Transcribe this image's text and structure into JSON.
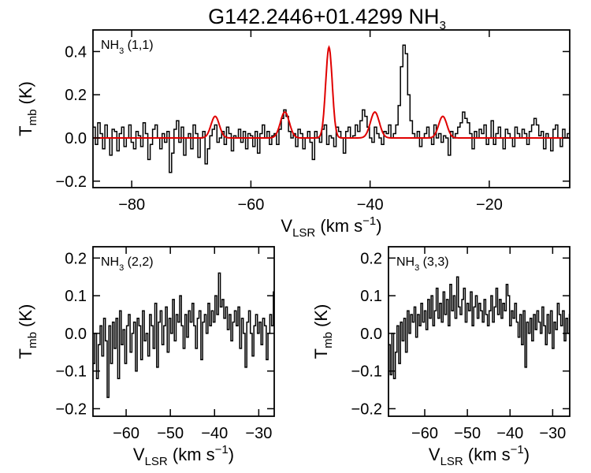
{
  "figure": {
    "title_main": "G142.2446+01.4299 NH",
    "title_sub": "3"
  },
  "chart_data": [
    {
      "type": "line",
      "panel_label": {
        "main": "NH",
        "sub": "3",
        "tail": " (1,1)"
      },
      "xlabel": {
        "main": "V",
        "sub": "LSR",
        "tail": " (km s",
        "sup": "−1",
        "end": ")"
      },
      "ylabel": {
        "main": "T",
        "sub": "mb",
        "tail": " (K)"
      },
      "xlim": [
        -86.5,
        -6.5
      ],
      "ylim": [
        -0.23,
        0.5
      ],
      "xticks": [
        -80,
        -60,
        -40,
        -20
      ],
      "xtick_labels": [
        "−80",
        "−60",
        "−40",
        "−20"
      ],
      "yticks": [
        -0.2,
        0.0,
        0.2,
        0.4
      ],
      "ytick_labels": [
        "−0.2",
        "0.0",
        "0.2",
        "0.4"
      ],
      "series": [
        {
          "name": "",
          "style": "step",
          "color": "#000000",
          "x_start": -86.5,
          "x_step": 0.4,
          "values": [
            0.05,
            -0.03,
            0.07,
            0.02,
            -0.05,
            0.06,
            0.0,
            -0.08,
            0.04,
            0.03,
            -0.06,
            0.02,
            0.05,
            -0.04,
            0.0,
            0.06,
            -0.02,
            -0.05,
            0.03,
            0.01,
            -0.04,
            0.07,
            0.02,
            -0.1,
            -0.03,
            0.04,
            0.06,
            0.0,
            -0.05,
            0.02,
            -0.02,
            0.03,
            -0.16,
            -0.07,
            0.04,
            0.08,
            -0.02,
            0.05,
            -0.08,
            0.0,
            0.02,
            -0.05,
            0.06,
            0.02,
            -0.09,
            0.0,
            0.03,
            -0.12,
            -0.05,
            0.01,
            0.04,
            0.06,
            -0.02,
            0.0,
            0.03,
            -0.03,
            0.05,
            0.02,
            -0.06,
            0.01,
            0.0,
            0.04,
            -0.02,
            0.03,
            -0.05,
            0.02,
            0.01,
            -0.04,
            0.03,
            -0.07,
            0.02,
            0.06,
            0.0,
            0.03,
            -0.03,
            0.01,
            0.02,
            -0.03,
            0.04,
            0.09,
            0.13,
            0.1,
            0.03,
            0.0,
            0.02,
            -0.04,
            0.04,
            0.02,
            -0.05,
            0.0,
            0.03,
            -0.02,
            -0.1,
            0.03,
            0.0,
            -0.02,
            0.04,
            0.06,
            -0.03,
            0.01,
            0.0,
            -0.04,
            0.05,
            0.03,
            0.0,
            -0.07,
            0.03,
            0.05,
            0.0,
            0.01,
            0.06,
            0.03,
            0.08,
            0.13,
            0.1,
            0.05,
            0.0,
            -0.02,
            0.05,
            0.02,
            0.0,
            -0.03,
            0.03,
            0.02,
            0.06,
            0.0,
            0.02,
            0.06,
            0.15,
            0.33,
            0.43,
            0.39,
            0.2,
            0.08,
            0.02,
            0.0,
            0.03,
            -0.04,
            0.0,
            0.02,
            0.05,
            0.0,
            -0.03,
            0.06,
            0.0,
            0.02,
            -0.02,
            0.01,
            0.0,
            -0.08,
            0.03,
            0.0,
            0.02,
            0.05,
            0.07,
            0.12,
            0.09,
            0.07,
            0.02,
            -0.05,
            0.03,
            0.0,
            0.04,
            0.02,
            0.06,
            -0.03,
            0.0,
            0.08,
            -0.03,
            0.02,
            0.05,
            0.0,
            -0.05,
            0.04,
            0.02,
            0.0,
            -0.04,
            0.05,
            0.02,
            0.0,
            0.04,
            0.02,
            -0.03,
            0.03,
            0.06,
            0.09,
            0.06,
            0.01,
            0.03,
            -0.05,
            0.02,
            0.0,
            -0.06,
            0.04,
            0.06,
            0.0,
            -0.04,
            0.04,
            0.0,
            0.02,
            0.05,
            0.0,
            0.03,
            -0.03,
            0.06,
            0.0,
            -0.02,
            0.03,
            0.0,
            0.06,
            -0.04,
            0.02,
            -0.08,
            0.04,
            0.1,
            0.05,
            0.02,
            -0.03,
            -0.05,
            0.04,
            0.06,
            0.01,
            -0.03,
            0.04,
            0.05,
            0.0,
            0.02,
            -0.02
          ]
        },
        {
          "name": "",
          "style": "model",
          "color": "#e00000",
          "components": [
            {
              "center": -66.0,
              "amp": 0.1,
              "sigma": 0.7
            },
            {
              "center": -54.3,
              "amp": 0.12,
              "sigma": 0.75
            },
            {
              "center": -46.9,
              "amp": 0.42,
              "sigma": 0.55
            },
            {
              "center": -39.2,
              "amp": 0.12,
              "sigma": 0.75
            },
            {
              "center": -27.8,
              "amp": 0.1,
              "sigma": 0.7
            }
          ]
        }
      ]
    },
    {
      "type": "line",
      "panel_label": {
        "main": "NH",
        "sub": "3",
        "tail": " (2,2)"
      },
      "xlabel": {
        "main": "V",
        "sub": "LSR",
        "tail": " (km s",
        "sup": "−1",
        "end": ")"
      },
      "ylabel": {
        "main": "T",
        "sub": "mb",
        "tail": " (K)"
      },
      "xlim": [
        -67.5,
        -26.5
      ],
      "ylim": [
        -0.22,
        0.23
      ],
      "xticks": [
        -60,
        -50,
        -40,
        -30
      ],
      "xtick_labels": [
        "−60",
        "−50",
        "−40",
        "−30"
      ],
      "yticks": [
        -0.2,
        -0.1,
        0.0,
        0.1,
        0.2
      ],
      "ytick_labels": [
        "−0.2",
        "−0.1",
        "0.0",
        "0.1",
        "0.2"
      ],
      "series": [
        {
          "name": "",
          "style": "step",
          "color": "#000000",
          "x_start": -67.5,
          "x_step": 0.4,
          "values": [
            -0.08,
            0.0,
            -0.12,
            -0.03,
            0.02,
            -0.06,
            0.04,
            -0.02,
            -0.17,
            0.02,
            -0.08,
            0.03,
            -0.04,
            0.04,
            -0.12,
            0.06,
            -0.03,
            0.01,
            -0.08,
            0.02,
            0.05,
            -0.05,
            0.0,
            0.03,
            -0.1,
            0.04,
            0.02,
            -0.07,
            0.06,
            -0.02,
            0.0,
            -0.06,
            0.05,
            0.02,
            -0.04,
            0.08,
            -0.09,
            0.03,
            0.06,
            -0.03,
            0.02,
            0.07,
            -0.05,
            0.04,
            0.0,
            0.09,
            -0.02,
            0.05,
            0.03,
            0.1,
            0.02,
            -0.04,
            0.05,
            -0.01,
            0.06,
            0.03,
            0.08,
            0.02,
            -0.04,
            0.04,
            0.06,
            -0.07,
            0.03,
            0.05,
            0.0,
            0.08,
            0.02,
            0.06,
            0.03,
            0.1,
            0.05,
            0.16,
            0.07,
            0.09,
            0.04,
            0.07,
            0.01,
            0.05,
            -0.02,
            0.03,
            0.06,
            0.02,
            0.07,
            -0.04,
            0.04,
            0.0,
            -0.09,
            0.03,
            0.06,
            0.0,
            -0.06,
            0.02,
            0.05,
            0.0,
            0.03,
            -0.03,
            0.04,
            0.02,
            -0.07,
            0.0,
            0.05,
            0.02,
            0.11,
            -0.03,
            0.02,
            0.0,
            0.06,
            -0.02,
            0.04,
            0.07,
            -0.02,
            0.05,
            0.03,
            -0.06,
            0.04,
            0.0,
            0.03,
            0.09,
            -0.04,
            -0.11,
            0.02,
            0.0,
            0.06,
            -0.03,
            0.05,
            0.0,
            0.04,
            -0.04,
            0.06,
            0.11,
            -0.02,
            0.03,
            0.0,
            0.1,
            0.05,
            -0.09,
            0.02,
            0.04,
            0.0,
            -0.06,
            0.05,
            0.02,
            -0.03,
            0.06,
            0.13,
            0.0,
            0.04,
            -0.02,
            0.06,
            0.0,
            -0.04
          ]
        }
      ]
    },
    {
      "type": "line",
      "panel_label": {
        "main": "NH",
        "sub": "3",
        "tail": " (3,3)"
      },
      "xlabel": {
        "main": "V",
        "sub": "LSR",
        "tail": " (km s",
        "sup": "−1",
        "end": ")"
      },
      "ylabel": {
        "main": "T",
        "sub": "mb",
        "tail": " (K)"
      },
      "xlim": [
        -68.5,
        -26.0
      ],
      "ylim": [
        -0.22,
        0.23
      ],
      "xticks": [
        -60,
        -50,
        -40,
        -30
      ],
      "xtick_labels": [
        "−60",
        "−50",
        "−40",
        "−30"
      ],
      "yticks": [
        -0.2,
        -0.1,
        0.0,
        0.1,
        0.2
      ],
      "ytick_labels": [
        "−0.2",
        "−0.1",
        "0.0",
        "0.1",
        "0.2"
      ],
      "series": [
        {
          "name": "",
          "style": "step",
          "color": "#000000",
          "x_start": -68.5,
          "x_step": 0.4,
          "values": [
            -0.03,
            -0.11,
            0.0,
            -0.12,
            -0.05,
            0.02,
            -0.08,
            0.03,
            -0.02,
            0.04,
            -0.05,
            0.06,
            0.0,
            0.05,
            0.03,
            0.07,
            -0.01,
            0.05,
            0.02,
            0.08,
            0.03,
            0.06,
            0.01,
            0.09,
            0.04,
            0.1,
            0.02,
            0.06,
            0.12,
            0.04,
            0.08,
            0.03,
            0.11,
            0.05,
            0.09,
            0.02,
            0.13,
            0.06,
            0.1,
            0.04,
            0.15,
            0.07,
            0.05,
            0.09,
            0.12,
            0.03,
            0.08,
            0.06,
            0.11,
            0.02,
            0.07,
            0.1,
            0.04,
            0.08,
            0.06,
            0.03,
            0.09,
            0.05,
            0.02,
            0.06,
            0.1,
            0.03,
            0.07,
            0.12,
            0.05,
            0.09,
            0.04,
            0.08,
            0.06,
            0.13,
            0.1,
            0.02,
            0.06,
            0.04,
            0.08,
            0.03,
            -0.01,
            0.05,
            -0.03,
            0.06,
            -0.09,
            0.03,
            0.0,
            0.04,
            -0.02,
            0.05,
            0.01,
            0.06,
            0.03,
            0.0,
            0.07,
            0.02,
            -0.03,
            0.05,
            0.0,
            0.06,
            -0.04,
            0.03,
            0.01,
            0.08,
            0.05,
            0.02,
            0.06,
            -0.02,
            0.04,
            0.0,
            0.05,
            0.02,
            -0.03,
            0.04,
            0.01,
            0.06,
            -0.02,
            0.03,
            0.0,
            -0.05,
            0.04,
            0.06,
            0.02,
            0.07,
            -0.03,
            0.05,
            0.01,
            0.04,
            -0.02,
            0.06,
            0.0,
            0.04,
            -0.04,
            0.03,
            0.02,
            0.05,
            0.0,
            0.06,
            -0.02,
            0.04,
            0.02,
            0.0,
            0.05,
            -0.03,
            0.03,
            0.01,
            0.06,
            0.0,
            0.04,
            -0.05,
            0.02,
            0.03,
            0.0,
            -0.06,
            0.04,
            0.02,
            -0.03,
            0.05,
            0.0,
            0.03,
            -0.02,
            0.04,
            0.01,
            0.05,
            -0.02,
            0.06,
            0.0,
            0.03,
            -0.04,
            0.02,
            0.04,
            0.0,
            0.05,
            -0.03,
            0.02,
            0.06,
            -0.02,
            0.04,
            0.0,
            -0.05
          ]
        }
      ]
    }
  ]
}
